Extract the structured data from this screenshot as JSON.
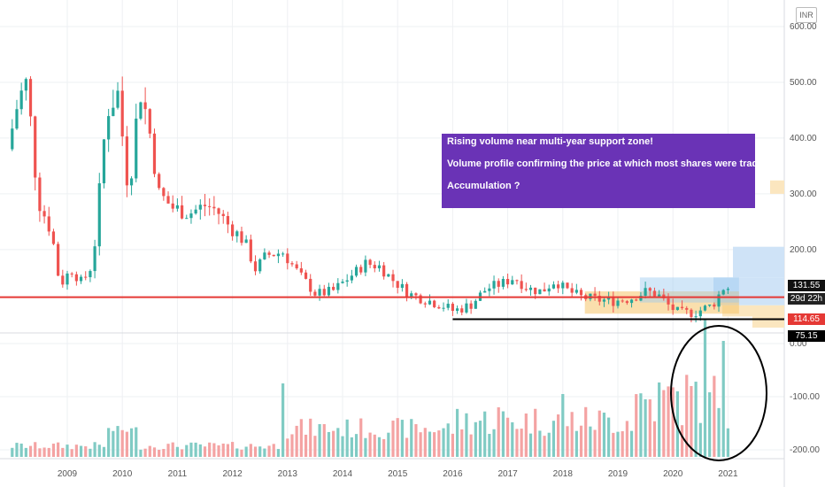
{
  "currency": "INR",
  "annotations": [
    "Rising volume near multi-year support zone!",
    "Volume profile confirming the price at which most  shares were traded!",
    "Accumulation ?"
  ],
  "price_tags": {
    "current": "131.55",
    "countdown": "29d 22h",
    "resistance": "114.65",
    "support": "75.15"
  },
  "colors": {
    "up": "#26a69a",
    "down": "#ef5350",
    "up_volume": "#80cbc4",
    "down_volume": "#f4a3a3",
    "resistance_line": "#e53935",
    "support_line": "#000000",
    "annotation_bg": "#6a33b6"
  },
  "chart_data": {
    "type": "candlestick",
    "interval": "monthly",
    "x_ticks": [
      "2009",
      "2010",
      "2011",
      "2012",
      "2013",
      "2014",
      "2015",
      "2016",
      "2017",
      "2018",
      "2019",
      "2020",
      "2021"
    ],
    "price_axis_ticks": [
      "600.00",
      "500.00",
      "400.00",
      "300.00",
      "200.00"
    ],
    "price_range": [
      50,
      620
    ],
    "volume_axis_ticks": [
      "0.00",
      "-100.00",
      "-200.00"
    ],
    "horizontal_levels": [
      114.65,
      75.15
    ],
    "support_line_start": 2016.0,
    "anchor_points": [
      [
        2008.0,
        380
      ],
      [
        2008.2,
        470
      ],
      [
        2008.35,
        500
      ],
      [
        2008.55,
        290
      ],
      [
        2008.8,
        230
      ],
      [
        2008.95,
        135
      ],
      [
        2009.15,
        165
      ],
      [
        2009.35,
        140
      ],
      [
        2009.55,
        175
      ],
      [
        2009.8,
        450
      ],
      [
        2010.0,
        480
      ],
      [
        2010.2,
        300
      ],
      [
        2010.4,
        490
      ],
      [
        2010.55,
        430
      ],
      [
        2010.75,
        300
      ],
      [
        2011.0,
        275
      ],
      [
        2011.3,
        265
      ],
      [
        2011.6,
        280
      ],
      [
        2011.8,
        270
      ],
      [
        2012.0,
        245
      ],
      [
        2012.3,
        215
      ],
      [
        2012.5,
        165
      ],
      [
        2012.7,
        190
      ],
      [
        2013.0,
        195
      ],
      [
        2013.3,
        155
      ],
      [
        2013.6,
        120
      ],
      [
        2013.9,
        125
      ],
      [
        2014.2,
        150
      ],
      [
        2014.5,
        175
      ],
      [
        2014.75,
        170
      ],
      [
        2015.0,
        145
      ],
      [
        2015.3,
        120
      ],
      [
        2015.6,
        110
      ],
      [
        2015.9,
        100
      ],
      [
        2016.1,
        90
      ],
      [
        2016.4,
        100
      ],
      [
        2016.7,
        130
      ],
      [
        2017.0,
        140
      ],
      [
        2017.2,
        150
      ],
      [
        2017.45,
        130
      ],
      [
        2017.7,
        125
      ],
      [
        2017.95,
        145
      ],
      [
        2018.1,
        130
      ],
      [
        2018.4,
        115
      ],
      [
        2018.7,
        110
      ],
      [
        2019.0,
        108
      ],
      [
        2019.3,
        112
      ],
      [
        2019.6,
        125
      ],
      [
        2019.8,
        120
      ],
      [
        2020.0,
        100
      ],
      [
        2020.2,
        85
      ],
      [
        2020.5,
        88
      ],
      [
        2020.8,
        100
      ],
      [
        2021.0,
        131.55
      ]
    ],
    "volume_highlights": [
      [
        2012.95,
        -75
      ],
      [
        2018.0,
        -95
      ],
      [
        2016.85,
        -120
      ],
      [
        2020.55,
        45
      ],
      [
        2020.95,
        5
      ],
      [
        2021.1,
        25
      ],
      [
        2019.6,
        -105
      ],
      [
        2020.3,
        -80
      ]
    ]
  }
}
